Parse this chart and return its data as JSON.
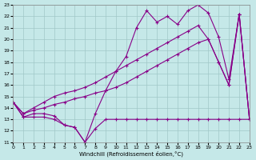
{
  "xlabel": "Windchill (Refroidissement éolien,°C)",
  "xlim": [
    0,
    23
  ],
  "ylim": [
    11,
    23
  ],
  "yticks": [
    11,
    12,
    13,
    14,
    15,
    16,
    17,
    18,
    19,
    20,
    21,
    22,
    23
  ],
  "xticks": [
    0,
    1,
    2,
    3,
    4,
    5,
    6,
    7,
    8,
    9,
    10,
    11,
    12,
    13,
    14,
    15,
    16,
    17,
    18,
    19,
    20,
    21,
    22,
    23
  ],
  "bg_color": "#c5e8e8",
  "grid_color": "#a0c8c8",
  "line_color": "#880088",
  "line1_x": [
    0,
    1,
    2,
    3,
    4,
    5,
    6,
    7,
    8,
    9,
    10,
    11,
    12,
    13,
    14,
    15,
    16,
    17,
    18,
    19,
    20,
    21,
    22,
    23
  ],
  "line1_y": [
    14.5,
    13.2,
    13.2,
    13.2,
    13.0,
    12.5,
    12.3,
    11.0,
    12.2,
    13.0,
    13.0,
    13.0,
    13.0,
    13.0,
    13.0,
    13.0,
    13.0,
    13.0,
    13.0,
    13.0,
    13.0,
    13.0,
    13.0,
    13.0
  ],
  "line2_x": [
    0,
    1,
    2,
    3,
    4,
    5,
    6,
    7,
    8,
    9,
    10,
    11,
    12,
    13,
    14,
    15,
    16,
    17,
    18,
    19,
    20,
    21,
    22,
    23
  ],
  "line2_y": [
    14.5,
    13.2,
    13.5,
    13.5,
    13.3,
    12.5,
    12.3,
    11.0,
    13.5,
    15.5,
    17.2,
    18.5,
    21.0,
    22.5,
    21.5,
    22.0,
    21.3,
    22.5,
    23.0,
    22.3,
    20.2,
    16.5,
    22.2,
    13.0
  ],
  "line3_x": [
    0,
    1,
    2,
    3,
    4,
    5,
    6,
    7,
    8,
    9,
    10,
    11,
    12,
    13,
    14,
    15,
    16,
    17,
    18,
    19,
    20,
    21,
    22,
    23
  ],
  "line3_y": [
    14.5,
    13.5,
    13.8,
    14.0,
    14.3,
    14.5,
    14.8,
    15.0,
    15.3,
    15.5,
    15.8,
    16.2,
    16.7,
    17.2,
    17.7,
    18.2,
    18.7,
    19.2,
    19.7,
    20.0,
    18.0,
    16.0,
    22.2,
    13.0
  ],
  "line4_x": [
    0,
    1,
    2,
    3,
    4,
    5,
    6,
    7,
    8,
    9,
    10,
    11,
    12,
    13,
    14,
    15,
    16,
    17,
    18,
    19,
    20,
    21,
    22,
    23
  ],
  "line4_y": [
    14.5,
    13.5,
    14.0,
    14.5,
    15.0,
    15.3,
    15.5,
    15.8,
    16.2,
    16.7,
    17.2,
    17.7,
    18.2,
    18.7,
    19.2,
    19.7,
    20.2,
    20.7,
    21.2,
    20.0,
    18.0,
    16.0,
    22.2,
    13.0
  ]
}
